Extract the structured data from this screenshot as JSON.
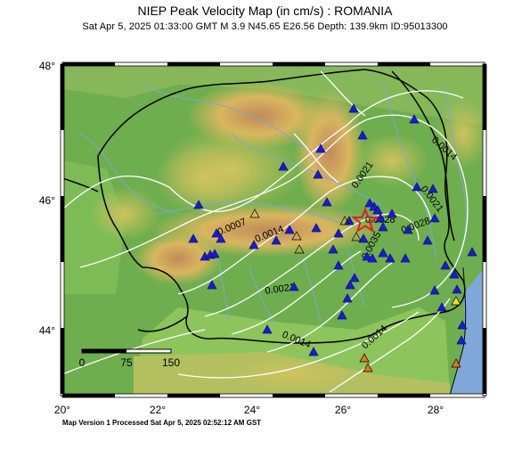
{
  "header": {
    "title": "NIEP Peak Velocity Map (in cm/s) : ROMANIA",
    "subtitle": "Sat Apr  5, 2025 01:33:00 GMT    M 3.9    N45.65 E26.56    Depth: 139.9km    ID:95013300"
  },
  "axes": {
    "lon_ticks": [
      "20°",
      "22°",
      "24°",
      "26°",
      "28°"
    ],
    "lat_ticks": [
      "48°",
      "46°",
      "44°"
    ]
  },
  "scale_bar": {
    "labels": [
      "0",
      "75",
      "150"
    ]
  },
  "contours": [
    "0.0007",
    "0.0014",
    "0.0021",
    "0.0028",
    "0.0035",
    "0.0014",
    "0.0021",
    "0.0028",
    "0.0021",
    "0.0014",
    "0.0014",
    "0.0021"
  ],
  "stations": {
    "icon": "triangle-icon",
    "colors": {
      "blue": "#1a1ad4",
      "orange": "#e07a1a",
      "yellow": "#f2e31a",
      "open": "none"
    }
  },
  "epicenter": {
    "icon": "star-icon",
    "color": "#e02020"
  },
  "footer": {
    "text": "Map Version 1 Processed Sat Apr  5, 2025 02:52:12 AM GST"
  }
}
